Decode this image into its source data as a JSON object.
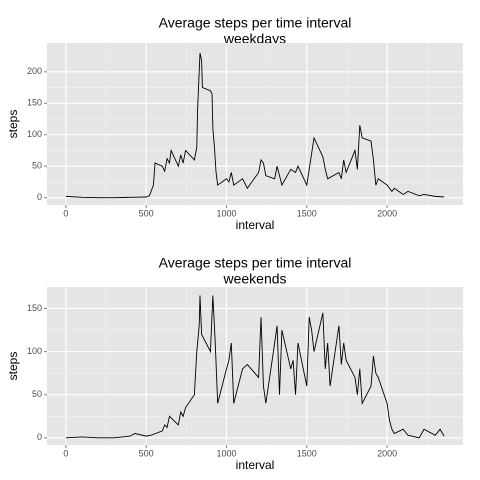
{
  "chart_data": [
    {
      "type": "line",
      "title": "Average steps per time interval",
      "subtitle": "weekdays",
      "x_label": "interval",
      "y_label": "steps",
      "color": "#000000",
      "grid": true,
      "xlim": [
        -117.75,
        2472.75
      ],
      "xticks": [
        0,
        500,
        1000,
        1500,
        2000
      ],
      "xminor": [
        250,
        750,
        1250,
        1750,
        2250
      ],
      "ylim": [
        -11.7,
        245.8
      ],
      "yticks": [
        0,
        50,
        100,
        150,
        200
      ],
      "yminor": [
        25,
        75,
        125,
        175,
        225
      ],
      "x": [
        0,
        100,
        200,
        300,
        400,
        500,
        520,
        545,
        555,
        600,
        615,
        630,
        645,
        655,
        700,
        715,
        730,
        745,
        800,
        815,
        820,
        830,
        835,
        845,
        850,
        900,
        910,
        915,
        925,
        935,
        945,
        1000,
        1015,
        1030,
        1045,
        1100,
        1130,
        1200,
        1215,
        1230,
        1245,
        1300,
        1315,
        1330,
        1345,
        1400,
        1430,
        1445,
        1500,
        1515,
        1530,
        1545,
        1600,
        1615,
        1630,
        1700,
        1715,
        1730,
        1745,
        1800,
        1815,
        1830,
        1845,
        1900,
        1915,
        1930,
        1945,
        2000,
        2030,
        2045,
        2100,
        2130,
        2200,
        2230,
        2300,
        2355
      ],
      "values": [
        2,
        0.5,
        0,
        0,
        0.5,
        1,
        3,
        20,
        55,
        50,
        42,
        62,
        55,
        75,
        50,
        68,
        55,
        75,
        60,
        80,
        140,
        200,
        230,
        218,
        175,
        170,
        165,
        110,
        80,
        40,
        20,
        30,
        25,
        40,
        20,
        30,
        15,
        40,
        60,
        55,
        35,
        30,
        50,
        35,
        20,
        45,
        40,
        50,
        20,
        45,
        70,
        95,
        65,
        45,
        30,
        40,
        30,
        60,
        40,
        75,
        45,
        115,
        95,
        90,
        60,
        20,
        30,
        20,
        10,
        15,
        5,
        10,
        3,
        5,
        2,
        1
      ]
    },
    {
      "type": "line",
      "title": "Average steps per time interval",
      "subtitle": "weekends",
      "x_label": "interval",
      "y_label": "steps",
      "color": "#000000",
      "grid": true,
      "xlim": [
        -117.75,
        2472.75
      ],
      "xticks": [
        0,
        500,
        1000,
        1500,
        2000
      ],
      "xminor": [
        250,
        750,
        1250,
        1750,
        2250
      ],
      "ylim": [
        -8.3,
        174.9
      ],
      "yticks": [
        0,
        50,
        100,
        150
      ],
      "yminor": [
        25,
        75,
        125
      ],
      "x": [
        0,
        100,
        200,
        300,
        400,
        430,
        500,
        530,
        600,
        615,
        630,
        645,
        700,
        715,
        730,
        745,
        800,
        815,
        830,
        835,
        845,
        900,
        915,
        930,
        945,
        1000,
        1015,
        1030,
        1045,
        1100,
        1130,
        1200,
        1215,
        1230,
        1245,
        1300,
        1315,
        1330,
        1345,
        1400,
        1415,
        1430,
        1445,
        1500,
        1515,
        1530,
        1545,
        1600,
        1615,
        1630,
        1645,
        1700,
        1715,
        1730,
        1745,
        1800,
        1815,
        1830,
        1845,
        1900,
        1915,
        1930,
        1945,
        2000,
        2015,
        2030,
        2045,
        2100,
        2130,
        2200,
        2230,
        2300,
        2330,
        2355
      ],
      "values": [
        0,
        1,
        0,
        0,
        2,
        5,
        2,
        3,
        8,
        15,
        12,
        25,
        15,
        30,
        25,
        35,
        50,
        100,
        130,
        165,
        120,
        100,
        165,
        110,
        40,
        80,
        90,
        110,
        40,
        80,
        85,
        70,
        140,
        60,
        40,
        110,
        130,
        50,
        125,
        80,
        90,
        50,
        110,
        60,
        140,
        125,
        100,
        145,
        80,
        110,
        60,
        130,
        85,
        110,
        90,
        70,
        50,
        80,
        40,
        60,
        95,
        75,
        70,
        40,
        20,
        10,
        5,
        10,
        3,
        0,
        10,
        3,
        10,
        2
      ]
    }
  ]
}
